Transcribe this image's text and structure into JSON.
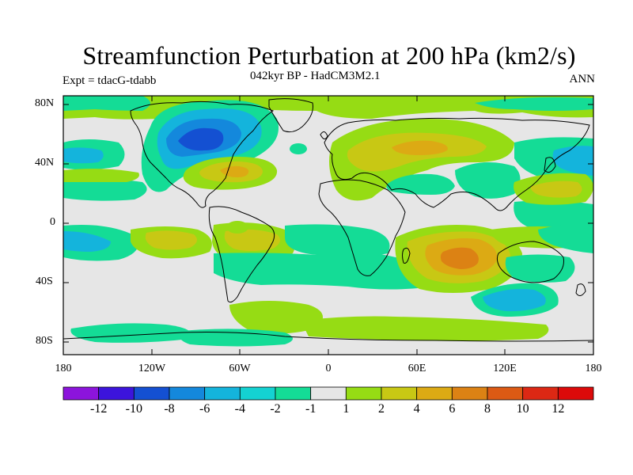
{
  "title": "Streamfunction Perturbation at 200 hPa (km2/s)",
  "subtitle_center": "042kyr BP - HadCM3M2.1",
  "subtitle_left": "Expt = tdacG-tdabb",
  "subtitle_right": "ANN",
  "lat_labels": [
    "80N",
    "40N",
    "0",
    "40S",
    "80S"
  ],
  "lon_labels": [
    "180",
    "120W",
    "60W",
    "0",
    "60E",
    "120E",
    "180"
  ],
  "colorbar": {
    "colors": [
      "#8c14dc",
      "#3c14dc",
      "#1450d2",
      "#1488dc",
      "#14b4dc",
      "#14d2d2",
      "#14dc96",
      "#e6e6e6",
      "#96dc14",
      "#c8c814",
      "#dcaa14",
      "#dc8214",
      "#dc5a14",
      "#dc2814",
      "#dc0a0a"
    ],
    "labels": [
      "-12",
      "-10",
      "-8",
      "-6",
      "-4",
      "-2",
      "-1",
      "1",
      "2",
      "4",
      "6",
      "8",
      "10",
      "12"
    ]
  },
  "field": {
    "background_color": "#e6e6e6",
    "anomalies": [
      {
        "name": "north-america-low",
        "lon": -85,
        "lat": 60,
        "value": -8
      },
      {
        "name": "north-atlantic-high",
        "lon": -60,
        "lat": 35,
        "value": 6
      },
      {
        "name": "eurasia-high",
        "lon": 60,
        "lat": 50,
        "value": 6
      },
      {
        "name": "indian-ocean-high",
        "lon": 90,
        "lat": -25,
        "value": 6
      },
      {
        "name": "south-atlantic-high",
        "lon": -50,
        "lat": -10,
        "value": 4
      },
      {
        "name": "south-pacific-high",
        "lon": -120,
        "lat": -10,
        "value": 4
      },
      {
        "name": "southern-ocean-low",
        "lon": 120,
        "lat": -50,
        "value": -4
      },
      {
        "name": "north-pacific-low",
        "lon": 175,
        "lat": 40,
        "value": -4
      },
      {
        "name": "east-pacific-low",
        "lon": -160,
        "lat": -10,
        "value": -4
      }
    ]
  }
}
